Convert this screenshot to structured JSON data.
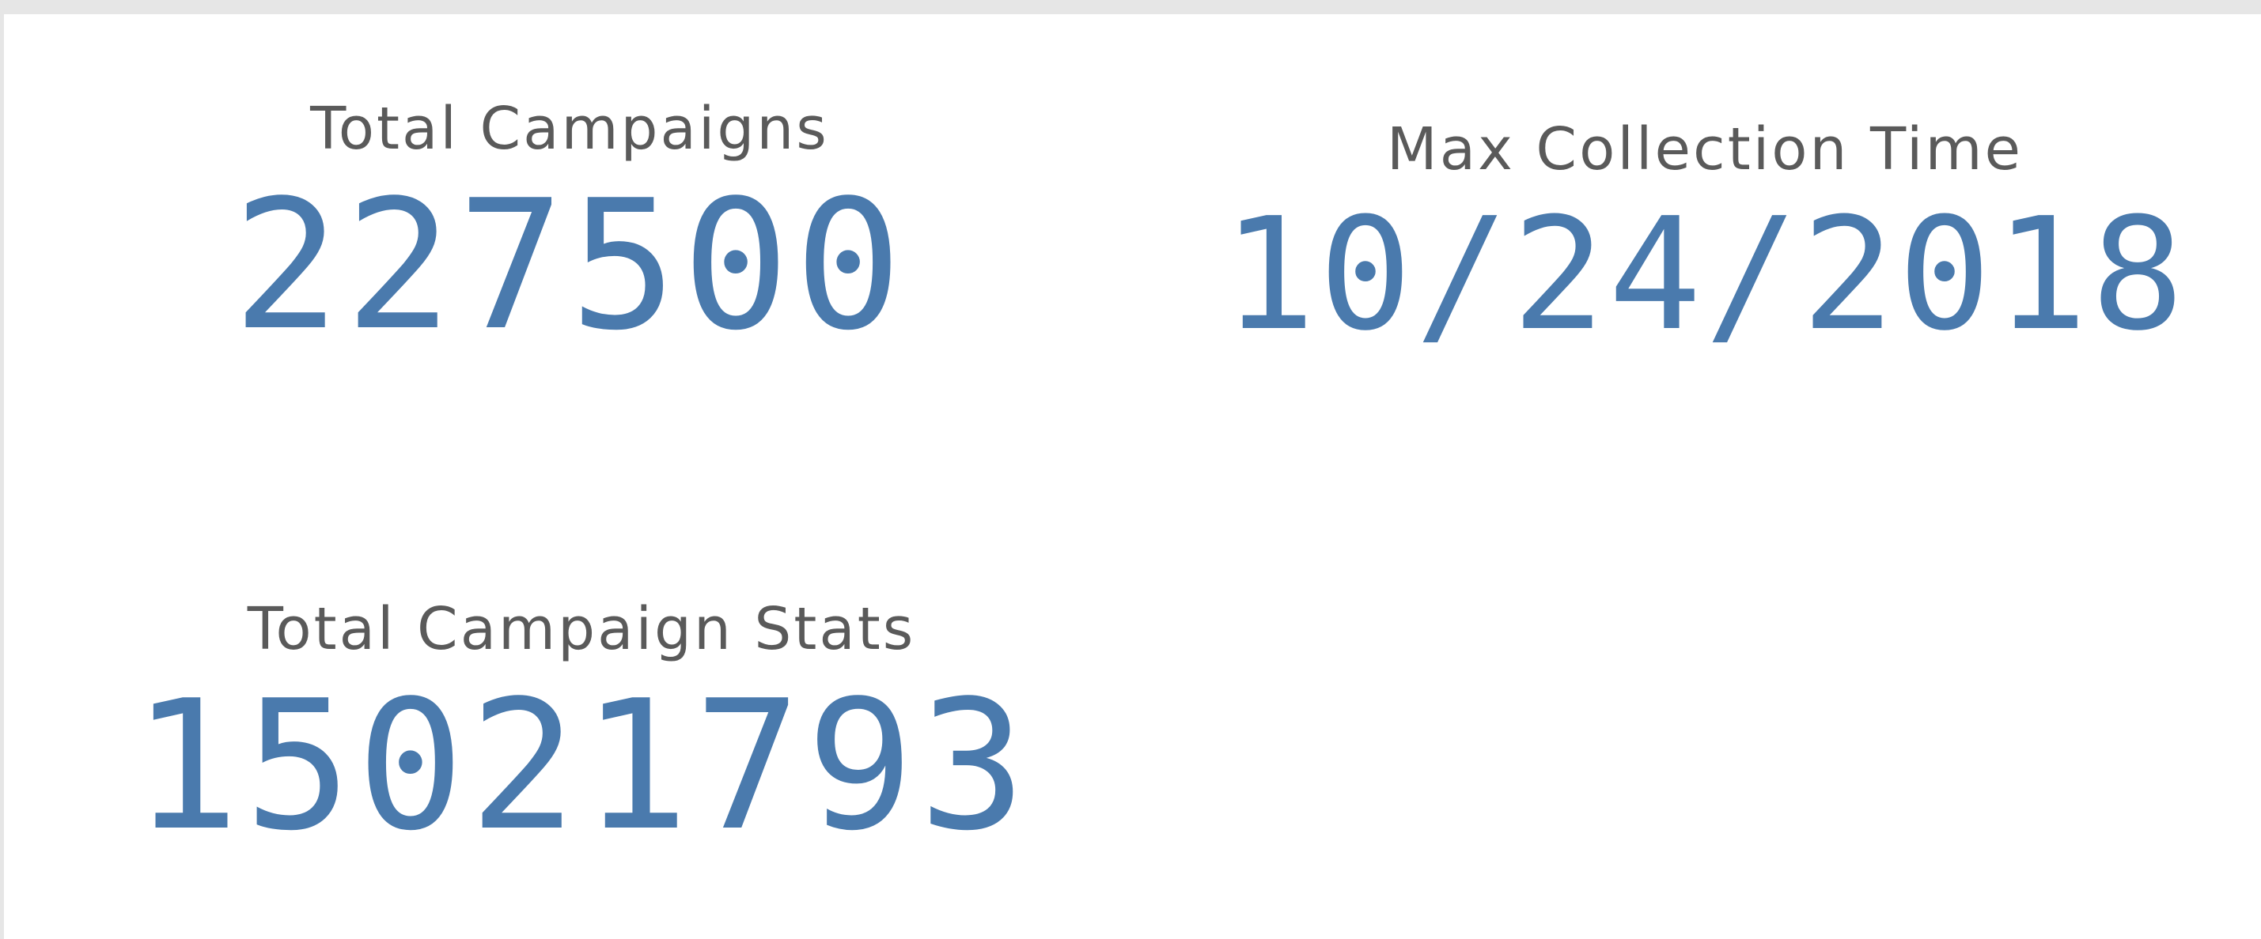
{
  "theme": {
    "title_color": "#5a5a5a",
    "value_color": "#4a7aad",
    "background": "#ffffff",
    "frame": "#e6e6e6"
  },
  "kpis": [
    {
      "title": "Total Campaigns",
      "value": "227500"
    },
    {
      "title": "Max Collection Time",
      "value": "10/24/2018"
    },
    {
      "title": "Total Campaign Stats",
      "value": "15021793"
    }
  ]
}
